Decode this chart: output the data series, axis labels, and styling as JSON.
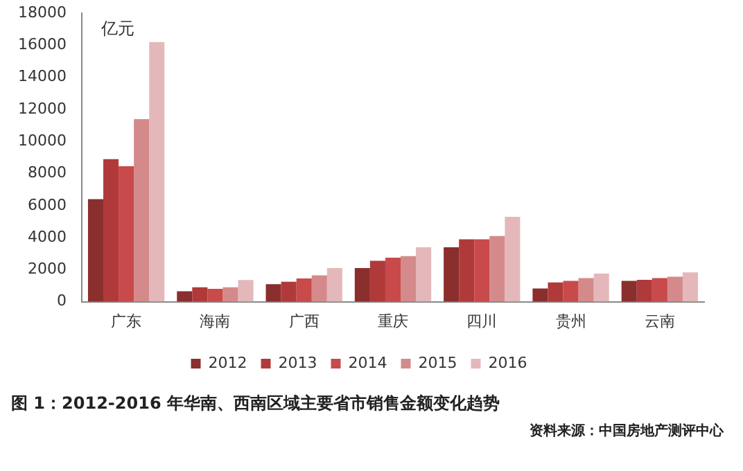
{
  "chart_data": {
    "type": "bar",
    "title": "图 1：2012-2016 年华南、西南区域主要省市销售金额变化趋势",
    "ylabel": "亿元",
    "categories": [
      "广东",
      "海南",
      "广西",
      "重庆",
      "四川",
      "贵州",
      "云南"
    ],
    "series": [
      {
        "name": "2012",
        "color": "#8b2e2e",
        "values": [
          6400,
          650,
          1100,
          2100,
          3400,
          830,
          1300
        ]
      },
      {
        "name": "2013",
        "color": "#b03a3a",
        "values": [
          8900,
          900,
          1250,
          2550,
          3900,
          1200,
          1370
        ]
      },
      {
        "name": "2014",
        "color": "#c84a4a",
        "values": [
          8450,
          800,
          1450,
          2750,
          3900,
          1300,
          1470
        ]
      },
      {
        "name": "2015",
        "color": "#d48a8a",
        "values": [
          11400,
          900,
          1650,
          2850,
          4100,
          1470,
          1560
        ]
      },
      {
        "name": "2016",
        "color": "#e4b8ba",
        "values": [
          16200,
          1350,
          2100,
          3400,
          5300,
          1750,
          1830
        ]
      }
    ],
    "ylim": [
      0,
      18000
    ],
    "yticks": [
      0,
      2000,
      4000,
      6000,
      8000,
      10000,
      12000,
      14000,
      16000,
      18000
    ],
    "grid": false,
    "legend": "bottom",
    "annotations": [
      "资料来源：中国房地产测评中心"
    ]
  }
}
